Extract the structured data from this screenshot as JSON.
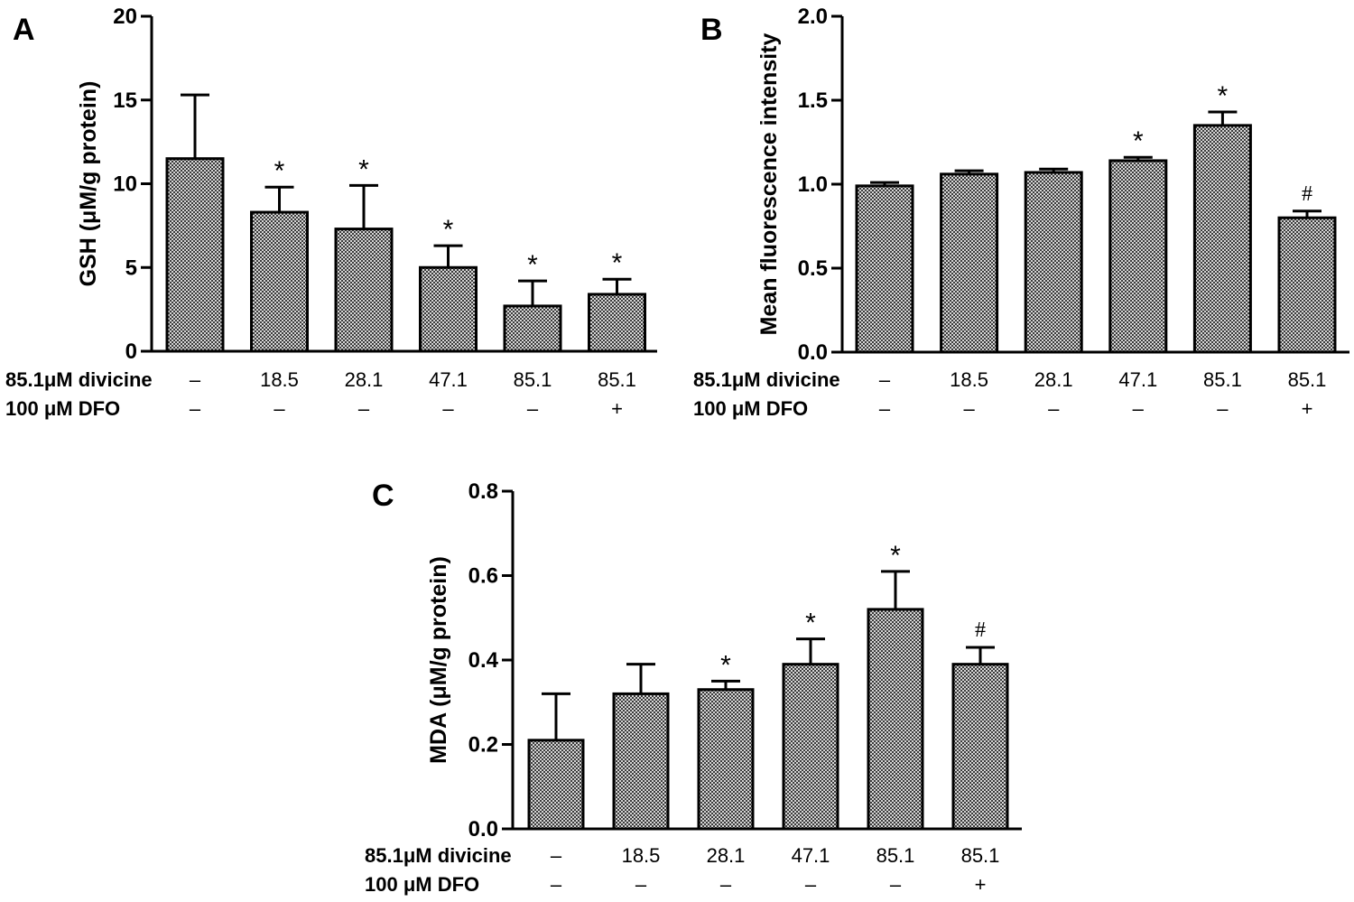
{
  "chart_data": [
    {
      "panel": "A",
      "type": "bar",
      "ylabel": "GSH (μM/g protein)",
      "ylim": [
        0,
        20
      ],
      "yticks": [
        "0",
        "5",
        "10",
        "15",
        "20"
      ],
      "values": [
        11.5,
        8.3,
        7.3,
        5.0,
        2.7,
        3.4
      ],
      "errors": [
        3.8,
        1.5,
        2.6,
        1.3,
        1.5,
        0.9
      ],
      "marks": [
        "",
        "*",
        "*",
        "*",
        "*",
        "*"
      ],
      "row1_label": "85.1μM divicine",
      "row1_values": [
        "–",
        "18.5",
        "28.1",
        "47.1",
        "85.1",
        "85.1"
      ],
      "row2_label": "100 μM DFO",
      "row2_values": [
        "–",
        "–",
        "–",
        "–",
        "–",
        "+"
      ],
      "grid": false,
      "legend": "none"
    },
    {
      "panel": "B",
      "type": "bar",
      "ylabel": "Mean fluorescence intensity",
      "ylim": [
        0,
        2.0
      ],
      "yticks": [
        "0.0",
        "0.5",
        "1.0",
        "1.5",
        "2.0"
      ],
      "values": [
        0.99,
        1.06,
        1.07,
        1.14,
        1.35,
        0.8
      ],
      "errors": [
        0.02,
        0.02,
        0.02,
        0.02,
        0.08,
        0.04
      ],
      "marks": [
        "",
        "",
        "",
        "*",
        "*",
        "#"
      ],
      "row1_label": "85.1μM divicine",
      "row1_values": [
        "–",
        "18.5",
        "28.1",
        "47.1",
        "85.1",
        "85.1"
      ],
      "row2_label": "100 μM DFO",
      "row2_values": [
        "–",
        "–",
        "–",
        "–",
        "–",
        "+"
      ],
      "grid": false,
      "legend": "none"
    },
    {
      "panel": "C",
      "type": "bar",
      "ylabel": "MDA (μM/g protein)",
      "ylim": [
        0,
        0.8
      ],
      "yticks": [
        "0.0",
        "0.2",
        "0.4",
        "0.6",
        "0.8"
      ],
      "values": [
        0.21,
        0.32,
        0.33,
        0.39,
        0.52,
        0.39
      ],
      "errors": [
        0.11,
        0.07,
        0.02,
        0.06,
        0.09,
        0.04
      ],
      "marks": [
        "",
        "",
        "*",
        "*",
        "*",
        "#"
      ],
      "row1_label": "85.1μM divicine",
      "row1_values": [
        "–",
        "18.5",
        "28.1",
        "47.1",
        "85.1",
        "85.1"
      ],
      "row2_label": "100 μM DFO",
      "row2_values": [
        "–",
        "–",
        "–",
        "–",
        "–",
        "+"
      ],
      "grid": false,
      "legend": "none"
    }
  ],
  "colors": {
    "bar_fill_light": "#d0d0d0",
    "bar_fill_dark": "#3a3a3a",
    "stroke": "#000000"
  }
}
